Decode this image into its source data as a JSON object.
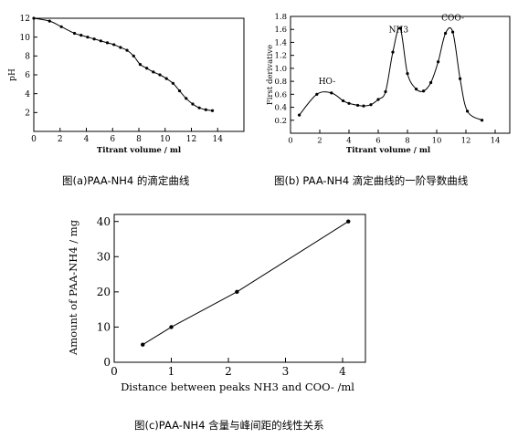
{
  "chart_data": [
    {
      "type": "line",
      "title": "",
      "xlabel": "Titrant volume / ml",
      "ylabel": "pH",
      "xlim": [
        0,
        16
      ],
      "ylim": [
        0,
        12
      ],
      "xticks": [
        0,
        2,
        4,
        6,
        8,
        10,
        12,
        14
      ],
      "yticks": [
        2,
        4,
        6,
        8,
        10,
        12
      ],
      "grid": false,
      "series": [
        {
          "x": [
            0,
            1.2,
            2.1,
            3.1,
            3.6,
            4.1,
            4.6,
            5.1,
            5.6,
            6.1,
            6.6,
            7.1,
            7.6,
            8.1,
            8.6,
            9.1,
            9.6,
            10.1,
            10.6,
            11.1,
            11.6,
            12.1,
            12.6,
            13.1,
            13.6
          ],
          "y": [
            12.0,
            11.7,
            11.1,
            10.4,
            10.2,
            10.0,
            9.8,
            9.6,
            9.4,
            9.2,
            8.9,
            8.6,
            8.0,
            7.1,
            6.7,
            6.3,
            6.0,
            5.6,
            5.1,
            4.3,
            3.5,
            2.9,
            2.5,
            2.3,
            2.2
          ]
        }
      ]
    },
    {
      "type": "line",
      "title": "",
      "xlabel": "Titrant volume / ml",
      "ylabel": "First derivative",
      "xlim": [
        0,
        15
      ],
      "ylim": [
        0,
        1.8
      ],
      "xticks": [
        0,
        2,
        4,
        6,
        8,
        10,
        12,
        14
      ],
      "yticks": [
        0.2,
        0.4,
        0.6,
        0.8,
        1.0,
        1.2,
        1.4,
        1.6,
        1.8
      ],
      "ytick_labels": [
        "0.2",
        "0.4",
        "0.6",
        "0.8",
        "1.0",
        "1.2",
        "1.4",
        "1.6",
        "1.8"
      ],
      "grid": false,
      "annotations": [
        {
          "text": "HO-",
          "x": 2.5,
          "y": 0.7
        },
        {
          "text": "NH3",
          "x": 7.4,
          "y": 1.5
        },
        {
          "text": "COO-",
          "x": 11.1,
          "y": 1.68
        }
      ],
      "series": [
        {
          "x": [
            0.6,
            1.8,
            2.8,
            3.6,
            4.0,
            4.6,
            5.0,
            5.5,
            6.0,
            6.5,
            7.0,
            7.5,
            8.0,
            8.6,
            9.1,
            9.6,
            10.1,
            10.6,
            11.1,
            11.6,
            12.1,
            13.1
          ],
          "y": [
            0.28,
            0.6,
            0.62,
            0.5,
            0.46,
            0.43,
            0.42,
            0.44,
            0.52,
            0.64,
            1.25,
            1.62,
            0.92,
            0.68,
            0.65,
            0.78,
            1.1,
            1.54,
            1.56,
            0.84,
            0.34,
            0.2
          ]
        }
      ]
    },
    {
      "type": "line",
      "title": "",
      "xlabel": "Distance between peaks NH3 and COO- /ml",
      "ylabel": "Amount of PAA-NH4 / mg",
      "xlim": [
        0,
        4.4
      ],
      "ylim": [
        0,
        42
      ],
      "xticks": [
        0,
        1,
        2,
        3,
        4
      ],
      "yticks": [
        0,
        10,
        20,
        30,
        40
      ],
      "grid": false,
      "series": [
        {
          "x": [
            0.5,
            1.0,
            2.15,
            4.1
          ],
          "y": [
            5,
            10,
            20,
            40
          ]
        }
      ]
    }
  ],
  "captions": {
    "a": "图(a)PAA-NH4 的滴定曲线",
    "b": "图(b) PAA-NH4 滴定曲线的一阶导数曲线",
    "c": "图(c)PAA-NH4 含量与峰间距的线性关系"
  }
}
